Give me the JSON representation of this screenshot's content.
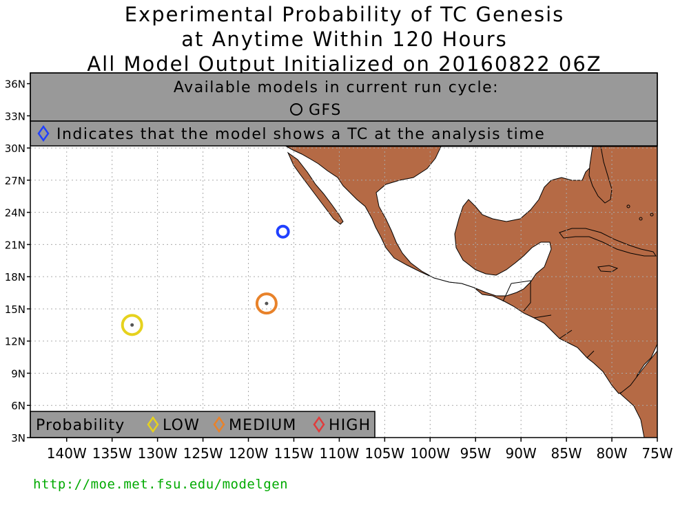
{
  "title": {
    "line1": "Experimental Probability of TC Genesis",
    "line2": "at Anytime Within 120 Hours",
    "line3": "All Model Output Initialized on 20160822 06Z"
  },
  "models_box": {
    "heading": "Available models in current run cycle:",
    "model": "GFS",
    "indicator_text": "Indicates that the model shows a TC at the analysis time"
  },
  "legend": {
    "label": "Probability",
    "items": [
      {
        "label": "LOW",
        "color": "#e6d21e"
      },
      {
        "label": "MEDIUM",
        "color": "#e8822a"
      },
      {
        "label": "HIGH",
        "color": "#e03c3c"
      }
    ]
  },
  "axes": {
    "lat_labels": [
      "36N",
      "33N",
      "30N",
      "27N",
      "24N",
      "21N",
      "18N",
      "15N",
      "12N",
      "9N",
      "6N",
      "3N"
    ],
    "lat_values": [
      36,
      33,
      30,
      27,
      24,
      21,
      18,
      15,
      12,
      9,
      6,
      3
    ],
    "lon_labels": [
      "140W",
      "135W",
      "130W",
      "125W",
      "120W",
      "115W",
      "110W",
      "105W",
      "100W",
      "95W",
      "90W",
      "85W",
      "80W",
      "75W"
    ],
    "lon_values": [
      -140,
      -135,
      -130,
      -125,
      -120,
      -115,
      -110,
      -105,
      -100,
      -95,
      -90,
      -85,
      -80,
      -75
    ],
    "lon_range": [
      -144,
      -75
    ],
    "lat_range": [
      3,
      37
    ]
  },
  "markers": [
    {
      "type": "analysis",
      "lon": -116.2,
      "lat": 22.2,
      "color": "#2040ff"
    },
    {
      "type": "MEDIUM",
      "lon": -118.0,
      "lat": 15.5,
      "color": "#e8822a"
    },
    {
      "type": "LOW",
      "lon": -132.8,
      "lat": 13.5,
      "color": "#e6d21e"
    }
  ],
  "colors": {
    "land": "#b56a45",
    "ocean": "#ffffff",
    "panel": "#999999",
    "url": "#00aa00"
  },
  "footer_url": "http://moe.met.fsu.edu/modelgen"
}
